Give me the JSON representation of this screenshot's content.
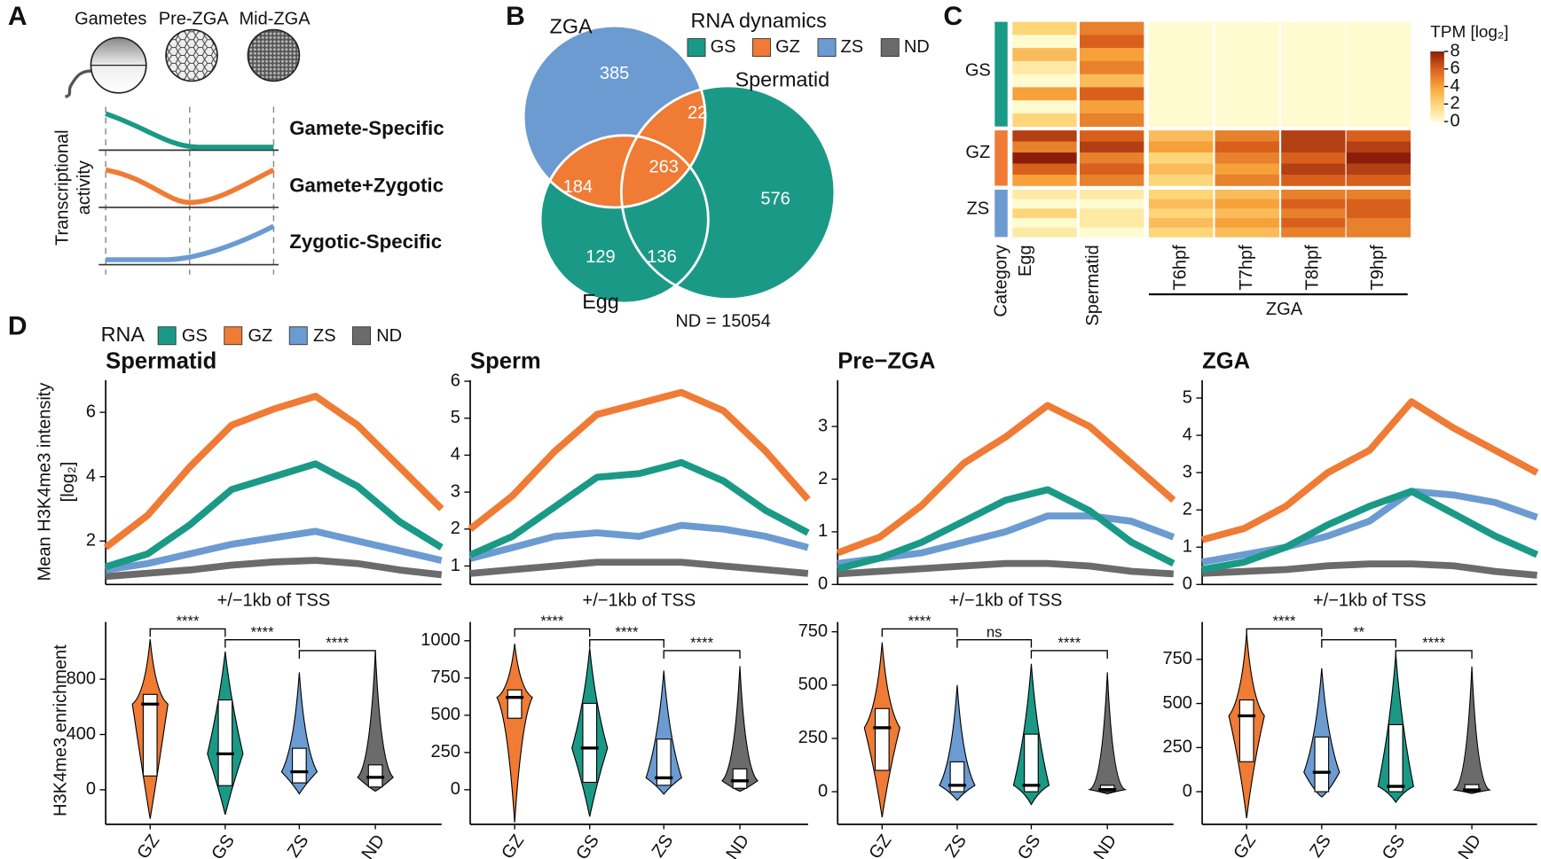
{
  "panel_a": {
    "label": "A",
    "stages": [
      "Gametes",
      "Pre-ZGA",
      "Mid-ZGA"
    ],
    "y_label": [
      "Transcriptional",
      "activity"
    ],
    "profiles": [
      "Gamete-Specific",
      "Gamete+Zygotic",
      "Zygotic-Specific"
    ]
  },
  "panel_b": {
    "label": "B",
    "sets": [
      "ZGA",
      "Spermatid",
      "Egg"
    ],
    "legend_title": "RNA dynamics",
    "legend": [
      {
        "name": "GS",
        "color": "#1a9a86"
      },
      {
        "name": "GZ",
        "color": "#ef7b35"
      },
      {
        "name": "ZS",
        "color": "#6b9bd1"
      },
      {
        "name": "ND",
        "color": "#6b6b6b"
      }
    ],
    "regions": {
      "zga_only": 385,
      "zga_spermatid": 22,
      "all": 263,
      "zga_egg": 184,
      "spermatid_only": 576,
      "egg_only": 129,
      "egg_spermatid": 136
    },
    "nd": "ND = 15054"
  },
  "panel_c": {
    "label": "C"
  },
  "panel_d": {
    "label": "D"
  },
  "chart_data": [
    {
      "type": "line",
      "title": "Spermatid",
      "x_label": "+/−1kb of TSS",
      "y_label": [
        "Mean H3K4me3 intensity",
        "[log₂]"
      ],
      "legend_title": "RNA",
      "x": [
        -1000,
        -750,
        -500,
        -250,
        0,
        250,
        500,
        750,
        1000
      ],
      "xlim": [
        -1000,
        1000
      ],
      "ylim": [
        0.65,
        7
      ],
      "yticks": [
        2,
        4,
        6
      ],
      "series": [
        {
          "name": "GS",
          "color": "#1a9a86",
          "values": [
            1.2,
            1.6,
            2.5,
            3.6,
            4.0,
            4.4,
            3.7,
            2.6,
            1.8
          ]
        },
        {
          "name": "GZ",
          "color": "#ef7b35",
          "values": [
            1.8,
            2.8,
            4.3,
            5.6,
            6.1,
            6.5,
            5.6,
            4.3,
            3.0
          ]
        },
        {
          "name": "ZS",
          "color": "#6b9bd1",
          "values": [
            1.1,
            1.3,
            1.6,
            1.9,
            2.1,
            2.3,
            2.0,
            1.7,
            1.4
          ]
        },
        {
          "name": "ND",
          "color": "#6b6b6b",
          "values": [
            0.9,
            1.0,
            1.1,
            1.25,
            1.35,
            1.4,
            1.3,
            1.1,
            0.95
          ]
        }
      ]
    },
    {
      "type": "line",
      "title": "Sperm",
      "x_label": "+/−1kb of TSS",
      "x": [
        -1000,
        -750,
        -500,
        -250,
        0,
        250,
        500,
        750,
        1000
      ],
      "xlim": [
        -1000,
        1000
      ],
      "ylim": [
        0.5,
        6.03
      ],
      "yticks": [
        1,
        2,
        3,
        4,
        5,
        6
      ],
      "series": [
        {
          "name": "GS",
          "color": "#1a9a86",
          "values": [
            1.3,
            1.8,
            2.6,
            3.4,
            3.5,
            3.8,
            3.3,
            2.5,
            1.9
          ]
        },
        {
          "name": "GZ",
          "color": "#ef7b35",
          "values": [
            2.0,
            2.9,
            4.1,
            5.1,
            5.4,
            5.7,
            5.2,
            4.1,
            2.8
          ]
        },
        {
          "name": "ZS",
          "color": "#6b9bd1",
          "values": [
            1.2,
            1.5,
            1.8,
            1.9,
            1.8,
            2.1,
            2.0,
            1.8,
            1.5
          ]
        },
        {
          "name": "ND",
          "color": "#6b6b6b",
          "values": [
            0.8,
            0.9,
            1.0,
            1.1,
            1.1,
            1.1,
            1.0,
            0.9,
            0.8
          ]
        }
      ]
    },
    {
      "type": "line",
      "title": "Pre−ZGA",
      "x_label": "+/−1kb of TSS",
      "x": [
        -1000,
        -750,
        -500,
        -250,
        0,
        250,
        500,
        750,
        1000
      ],
      "xlim": [
        -1000,
        1000
      ],
      "ylim": [
        0,
        3.88
      ],
      "yticks": [
        0,
        1,
        2,
        3
      ],
      "series": [
        {
          "name": "GS",
          "color": "#1a9a86",
          "values": [
            0.3,
            0.5,
            0.8,
            1.2,
            1.6,
            1.8,
            1.4,
            0.8,
            0.4
          ]
        },
        {
          "name": "GZ",
          "color": "#ef7b35",
          "values": [
            0.6,
            0.9,
            1.5,
            2.3,
            2.8,
            3.4,
            3.0,
            2.3,
            1.6
          ]
        },
        {
          "name": "ZS",
          "color": "#6b9bd1",
          "values": [
            0.4,
            0.5,
            0.6,
            0.8,
            1.0,
            1.3,
            1.3,
            1.2,
            0.9
          ]
        },
        {
          "name": "ND",
          "color": "#6b6b6b",
          "values": [
            0.2,
            0.25,
            0.3,
            0.35,
            0.4,
            0.4,
            0.35,
            0.25,
            0.2
          ]
        }
      ]
    },
    {
      "type": "line",
      "title": "ZGA",
      "x_label": "+/−1kb of TSS",
      "x": [
        -1000,
        -750,
        -500,
        -250,
        0,
        250,
        500,
        750,
        1000
      ],
      "xlim": [
        -1000,
        1000
      ],
      "ylim": [
        0,
        5.48
      ],
      "yticks": [
        0,
        1,
        2,
        3,
        4,
        5
      ],
      "series": [
        {
          "name": "GS",
          "color": "#1a9a86",
          "values": [
            0.4,
            0.6,
            1.0,
            1.6,
            2.1,
            2.5,
            1.9,
            1.3,
            0.8
          ]
        },
        {
          "name": "GZ",
          "color": "#ef7b35",
          "values": [
            1.2,
            1.5,
            2.1,
            3.0,
            3.6,
            4.9,
            4.2,
            3.6,
            3.0
          ]
        },
        {
          "name": "ZS",
          "color": "#6b9bd1",
          "values": [
            0.6,
            0.8,
            1.0,
            1.3,
            1.7,
            2.5,
            2.4,
            2.2,
            1.8
          ]
        },
        {
          "name": "ND",
          "color": "#6b6b6b",
          "values": [
            0.3,
            0.35,
            0.4,
            0.5,
            0.55,
            0.55,
            0.5,
            0.35,
            0.25
          ]
        }
      ]
    },
    {
      "type": "violin",
      "y_label": "H3K4me3 enrichment",
      "categories": [
        "GZ",
        "GS",
        "ZS",
        "ND"
      ],
      "colors": [
        "#ef7b35",
        "#1a9a86",
        "#6b9bd1",
        "#6b6b6b"
      ],
      "ylim": [
        -250,
        1214
      ],
      "yticks": [
        0,
        400,
        800
      ],
      "comparisons": [
        "****",
        "****",
        "****"
      ],
      "boxes": [
        {
          "min": -210,
          "q1": 100,
          "median": 620,
          "q3": 690,
          "max": 1090
        },
        {
          "min": -180,
          "q1": 30,
          "median": 260,
          "q3": 650,
          "max": 1000
        },
        {
          "min": -30,
          "q1": 50,
          "median": 130,
          "q3": 300,
          "max": 850
        },
        {
          "min": -10,
          "q1": 20,
          "median": 90,
          "q3": 180,
          "max": 1000
        }
      ]
    },
    {
      "type": "violin",
      "categories": [
        "GZ",
        "GS",
        "ZS",
        "ND"
      ],
      "colors": [
        "#ef7b35",
        "#1a9a86",
        "#6b9bd1",
        "#6b6b6b"
      ],
      "ylim": [
        -232,
        1126
      ],
      "yticks": [
        0,
        250,
        500,
        750,
        1000
      ],
      "comparisons": [
        "****",
        "****",
        "****"
      ],
      "boxes": [
        {
          "min": -220,
          "q1": 480,
          "median": 620,
          "q3": 670,
          "max": 980
        },
        {
          "min": -180,
          "q1": 50,
          "median": 280,
          "q3": 580,
          "max": 950
        },
        {
          "min": -30,
          "q1": 30,
          "median": 80,
          "q3": 340,
          "max": 800
        },
        {
          "min": -10,
          "q1": 10,
          "median": 60,
          "q3": 140,
          "max": 830
        }
      ]
    },
    {
      "type": "violin",
      "categories": [
        "GZ",
        "ZS",
        "GS",
        "ND"
      ],
      "colors": [
        "#ef7b35",
        "#6b9bd1",
        "#1a9a86",
        "#6b6b6b"
      ],
      "ylim": [
        -153,
        796
      ],
      "yticks": [
        0,
        250,
        500,
        750
      ],
      "comparisons": [
        "****",
        "ns",
        "****"
      ],
      "boxes": [
        {
          "min": -120,
          "q1": 100,
          "median": 300,
          "q3": 390,
          "max": 700
        },
        {
          "min": -40,
          "q1": 0,
          "median": 30,
          "q3": 140,
          "max": 500
        },
        {
          "min": -60,
          "q1": 0,
          "median": 30,
          "q3": 270,
          "max": 600
        },
        {
          "min": -10,
          "q1": 0,
          "median": 10,
          "q3": 30,
          "max": 560
        }
      ]
    },
    {
      "type": "violin",
      "categories": [
        "GZ",
        "ZS",
        "GS",
        "ND"
      ],
      "colors": [
        "#ef7b35",
        "#6b9bd1",
        "#1a9a86",
        "#6b6b6b"
      ],
      "ylim": [
        -185,
        962
      ],
      "yticks": [
        0,
        250,
        500,
        750
      ],
      "comparisons": [
        "****",
        "**",
        "****"
      ],
      "boxes": [
        {
          "min": -150,
          "q1": 170,
          "median": 430,
          "q3": 520,
          "max": 900
        },
        {
          "min": -30,
          "q1": 0,
          "median": 110,
          "q3": 310,
          "max": 700
        },
        {
          "min": -60,
          "q1": 0,
          "median": 30,
          "q3": 380,
          "max": 780
        },
        {
          "min": -10,
          "q1": 0,
          "median": 10,
          "q3": 40,
          "max": 710
        }
      ]
    },
    {
      "type": "heatmap",
      "category_label": "Category",
      "column_group_label": "ZGA",
      "columns": [
        "Egg",
        "Spermatid",
        "T6hpf",
        "T7hpf",
        "T8hpf",
        "T9hpf"
      ],
      "row_groups": [
        {
          "name": "GS",
          "color": "#1a9a86",
          "values": [
            [
              2,
              5,
              0,
              0,
              0,
              0
            ],
            [
              0,
              6,
              0,
              0,
              0,
              0
            ],
            [
              3,
              4,
              0,
              0,
              0,
              0
            ],
            [
              1,
              5,
              0,
              0,
              0,
              0
            ],
            [
              0,
              3,
              0,
              0,
              0,
              0
            ],
            [
              4,
              6,
              0,
              0,
              0,
              0
            ],
            [
              0,
              4,
              0,
              0,
              0,
              0
            ],
            [
              2,
              5,
              0,
              0,
              0,
              0
            ]
          ]
        },
        {
          "name": "GZ",
          "color": "#ef7b35",
          "values": [
            [
              7,
              6,
              3,
              5,
              7,
              6
            ],
            [
              5,
              7,
              4,
              6,
              7,
              7
            ],
            [
              8,
              5,
              2,
              5,
              6,
              8
            ],
            [
              6,
              6,
              3,
              4,
              7,
              7
            ],
            [
              4,
              5,
              2,
              5,
              6,
              6
            ]
          ]
        },
        {
          "name": "ZS",
          "color": "#6b9bd1",
          "values": [
            [
              1,
              1,
              2,
              3,
              5,
              5
            ],
            [
              0,
              0,
              3,
              4,
              6,
              6
            ],
            [
              2,
              1,
              2,
              3,
              5,
              6
            ],
            [
              0,
              1,
              3,
              4,
              6,
              5
            ],
            [
              1,
              0,
              2,
              3,
              5,
              5
            ]
          ]
        }
      ],
      "colorbar": {
        "title": "TPM [log₂]",
        "lim": [
          0,
          8
        ],
        "ticks": [
          0,
          2,
          4,
          6,
          8
        ],
        "colormap": [
          "#fffbd0",
          "#fdd67a",
          "#f7a13a",
          "#d9601c",
          "#8c1d0b"
        ]
      }
    }
  ]
}
